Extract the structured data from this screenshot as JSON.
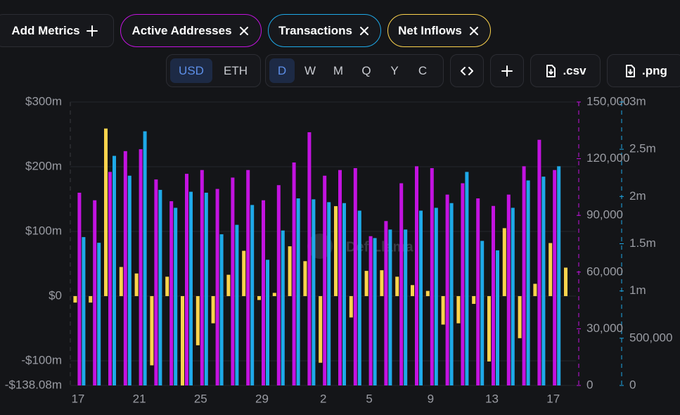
{
  "toolbar": {
    "add_metrics": "Add Metrics"
  },
  "controls": {
    "currencies": [
      "USD",
      "ETH"
    ],
    "selected_currency": 0,
    "periods": [
      "D",
      "W",
      "M",
      "Q",
      "Y",
      "C"
    ],
    "selected_period": 0,
    "exports": [
      ".csv",
      ".png"
    ]
  },
  "watermark": "DefiLlama",
  "chart_data": {
    "type": "bar",
    "categories": [
      "17",
      null,
      null,
      null,
      "21",
      null,
      null,
      null,
      "25",
      null,
      null,
      null,
      "29",
      null,
      null,
      null,
      "2",
      null,
      null,
      "5",
      null,
      null,
      null,
      "9",
      null,
      null,
      null,
      "13",
      null,
      null,
      null,
      "17",
      null
    ],
    "series": [
      {
        "name": "Active Addresses",
        "color": "#c313e0",
        "axis": "y2",
        "values": [
          102000,
          98000,
          113000,
          124000,
          125000,
          109000,
          97500,
          112000,
          114000,
          104000,
          110000,
          114000,
          98000,
          106000,
          118000,
          134000,
          111000,
          114000,
          115000,
          79000,
          87000,
          107000,
          116000,
          115000,
          101000,
          107000,
          99000,
          95000,
          101000,
          116000,
          130000,
          114000,
          null
        ]
      },
      {
        "name": "Transactions",
        "color": "#1ea9e8",
        "axis": "y3",
        "values": [
          1570000,
          1510000,
          2430000,
          2220000,
          2690000,
          2070000,
          1880000,
          2050000,
          2040000,
          1600000,
          1700000,
          1910000,
          1330000,
          1640000,
          1980000,
          1970000,
          1940000,
          1930000,
          1850000,
          1560000,
          1650000,
          1650000,
          1850000,
          1880000,
          1930000,
          2260000,
          1530000,
          1430000,
          1880000,
          2170000,
          2210000,
          2320000,
          null
        ]
      },
      {
        "name": "Net Inflows",
        "color": "#fcd34d",
        "axis": "y",
        "values": [
          -10,
          -10,
          259,
          45,
          35,
          -107,
          30,
          -138.08,
          -76,
          -42,
          33,
          70,
          -6,
          5,
          77,
          54,
          -103,
          139,
          -33,
          39,
          40,
          30,
          17,
          8,
          -44,
          -42,
          -12,
          -101,
          105,
          -65,
          19,
          82,
          44
        ]
      }
    ],
    "ylim": [
      -138.08,
      300
    ],
    "yticks": [
      {
        "value": 300,
        "label": "$300m"
      },
      {
        "value": 200,
        "label": "$200m"
      },
      {
        "value": 100,
        "label": "$100m"
      },
      {
        "value": 0,
        "label": "$0"
      },
      {
        "value": -100,
        "label": "-$100m"
      },
      {
        "value": -138.08,
        "label": "-$138.08m"
      }
    ],
    "y2lim": [
      0,
      150000
    ],
    "y2ticks": [
      0,
      {
        "value": 30000,
        "label": "30,000"
      },
      {
        "value": 60000,
        "label": "60,000"
      },
      {
        "value": 90000,
        "label": "90,000"
      },
      {
        "value": 120000,
        "label": "120,000"
      },
      {
        "value": 150000,
        "label": "150,000"
      }
    ],
    "y3lim": [
      0,
      3000000
    ],
    "y3ticks": [
      0,
      {
        "value": 500000,
        "label": "500,000"
      },
      {
        "value": 1000000,
        "label": "1m"
      },
      {
        "value": 1500000,
        "label": "1.5m"
      },
      {
        "value": 2000000,
        "label": "2m"
      },
      {
        "value": 2500000,
        "label": "2.5m"
      },
      {
        "value": 3000000,
        "label": "3m"
      }
    ],
    "grid": true
  }
}
